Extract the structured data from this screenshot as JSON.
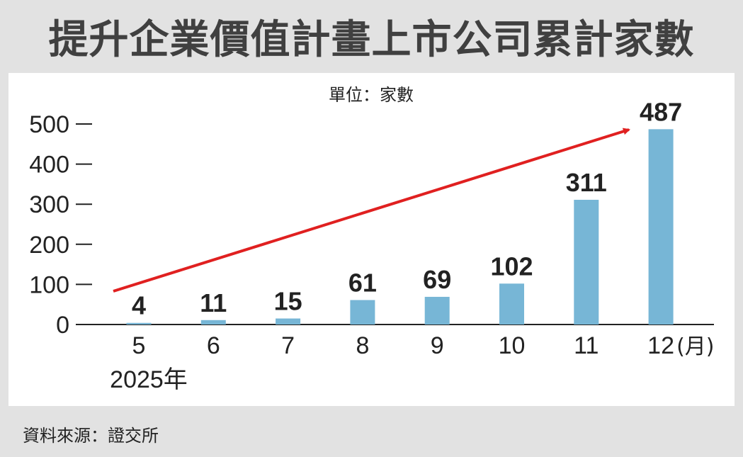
{
  "title": "提升企業價值計畫上市公司累計家數",
  "source": "資料來源：證交所",
  "colors": {
    "bar": "#77b6d6",
    "arrow": "#e02020",
    "text": "#222222",
    "title": "#404040",
    "frame": "#e2e2e2"
  },
  "chart_data": {
    "type": "bar",
    "unit_label": "單位：家數",
    "categories": [
      "5",
      "6",
      "7",
      "8",
      "9",
      "10",
      "11",
      "12"
    ],
    "x_unit_suffix": "(月)",
    "x_year_label": "2025年",
    "values": [
      4,
      11,
      15,
      61,
      69,
      102,
      311,
      487
    ],
    "data_labels": [
      "4",
      "11",
      "15",
      "61",
      "69",
      "102",
      "311",
      "487"
    ],
    "y_ticks": [
      0,
      100,
      200,
      300,
      400,
      500
    ],
    "ylim": [
      0,
      500
    ],
    "trend_arrow": true,
    "grid": false,
    "legend": "none"
  }
}
